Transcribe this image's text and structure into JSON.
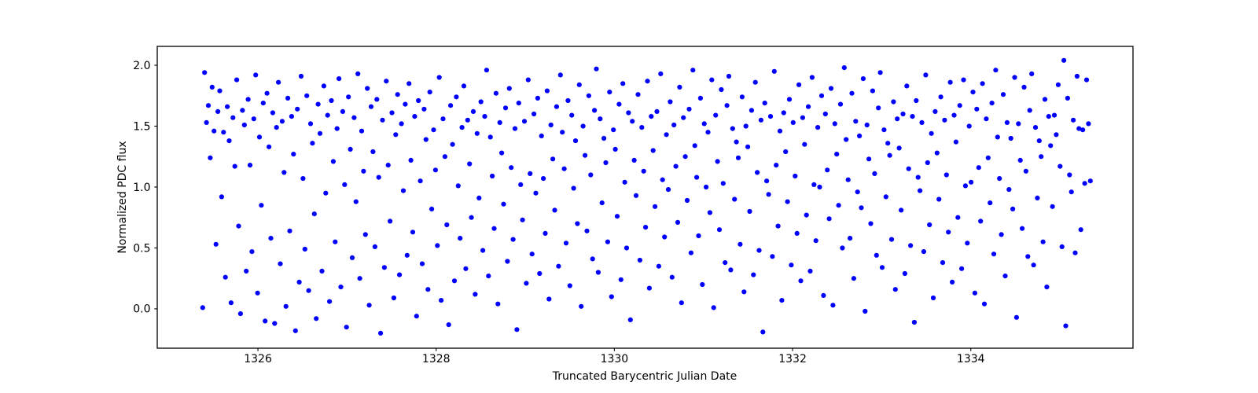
{
  "figure": {
    "background_color": "#ffffff",
    "frame_color": "#000000"
  },
  "chart_data": {
    "type": "scatter",
    "title": "",
    "xlabel": "Truncated Barycentric Julian Date",
    "ylabel": "Normalized PDC flux",
    "x_tick_labels": [
      "1326",
      "1328",
      "1330",
      "1332",
      "1334"
    ],
    "x_tick_values": [
      1326,
      1328,
      1330,
      1332,
      1334
    ],
    "y_tick_labels": [
      "0.0",
      "0.5",
      "1.0",
      "1.5",
      "2.0"
    ],
    "y_tick_values": [
      0.0,
      0.5,
      1.0,
      1.5,
      2.0
    ],
    "xlim": [
      1324.87,
      1335.82
    ],
    "ylim": [
      -0.323,
      2.155
    ],
    "grid": false,
    "legend": "none",
    "marker_color": "#0000ff",
    "marker_radius_px": 3.1,
    "x_start": 1325.38,
    "x_step": 0.02124,
    "y_values": [
      0.01,
      1.94,
      1.53,
      1.67,
      1.24,
      1.82,
      1.46,
      0.53,
      1.62,
      1.79,
      0.92,
      1.45,
      0.26,
      1.66,
      1.38,
      0.05,
      1.57,
      1.17,
      1.88,
      0.68,
      -0.04,
      1.63,
      1.51,
      0.31,
      1.72,
      1.18,
      0.47,
      1.56,
      1.92,
      0.13,
      1.41,
      0.85,
      1.69,
      -0.1,
      1.77,
      1.33,
      0.58,
      1.61,
      -0.12,
      1.49,
      1.86,
      0.37,
      1.54,
      1.12,
      0.02,
      1.73,
      0.64,
      1.58,
      1.27,
      -0.18,
      1.64,
      0.22,
      1.91,
      1.07,
      0.49,
      1.75,
      0.15,
      1.52,
      1.36,
      0.78,
      -0.08,
      1.68,
      1.44,
      0.31,
      1.83,
      0.95,
      1.59,
      0.06,
      1.71,
      1.21,
      0.55,
      1.48,
      1.89,
      0.18,
      1.62,
      1.02,
      -0.15,
      1.74,
      1.31,
      0.42,
      1.57,
      0.88,
      1.93,
      0.25,
      1.46,
      1.13,
      0.61,
      1.81,
      0.03,
      1.66,
      1.29,
      0.51,
      1.72,
      1.08,
      -0.2,
      1.55,
      0.34,
      1.87,
      1.18,
      0.72,
      1.61,
      0.09,
      1.43,
      1.76,
      0.28,
      1.52,
      0.97,
      1.68,
      0.44,
      1.85,
      1.22,
      0.63,
      1.58,
      -0.06,
      1.71,
      1.05,
      0.37,
      1.64,
      1.39,
      0.16,
      1.78,
      0.82,
      1.47,
      1.14,
      0.52,
      1.9,
      0.07,
      1.56,
      1.25,
      0.69,
      -0.13,
      1.67,
      1.35,
      0.23,
      1.74,
      1.01,
      0.58,
      1.49,
      1.83,
      0.33,
      1.55,
      1.19,
      0.75,
      1.62,
      0.12,
      1.44,
      0.91,
      1.7,
      0.48,
      1.58,
      1.96,
      0.27,
      1.41,
      1.09,
      0.66,
      1.77,
      0.04,
      1.53,
      1.28,
      0.86,
      1.65,
      0.39,
      1.81,
      1.16,
      0.57,
      1.48,
      -0.17,
      1.69,
      1.02,
      0.73,
      1.54,
      0.21,
      1.88,
      1.11,
      0.45,
      1.6,
      0.95,
      1.73,
      0.29,
      1.42,
      1.07,
      0.62,
      1.79,
      0.08,
      1.51,
      1.23,
      0.81,
      1.66,
      0.35,
      1.92,
      1.45,
      1.15,
      0.54,
      1.71,
      0.19,
      1.59,
      0.99,
      1.38,
      0.7,
      1.84,
      0.02,
      1.5,
      1.26,
      0.64,
      1.75,
      1.1,
      0.41,
      1.63,
      1.97,
      0.3,
      1.56,
      0.87,
      1.4,
      1.2,
      0.55,
      1.78,
      0.1,
      1.47,
      1.31,
      0.76,
      1.68,
      0.24,
      1.85,
      1.04,
      0.5,
      1.61,
      -0.09,
      1.54,
      1.22,
      0.93,
      1.76,
      0.4,
      1.49,
      1.13,
      0.67,
      1.87,
      0.17,
      1.58,
      1.3,
      0.84,
      1.62,
      0.35,
      1.93,
      1.06,
      0.59,
      1.43,
      0.98,
      1.7,
      0.26,
      1.51,
      1.17,
      0.71,
      1.82,
      0.05,
      1.57,
      1.25,
      0.89,
      1.64,
      0.46,
      1.96,
      1.34,
      1.08,
      0.6,
      1.73,
      0.2,
      1.52,
      1.0,
      1.45,
      0.79,
      1.88,
      0.01,
      1.59,
      1.21,
      0.65,
      1.8,
      1.03,
      0.38,
      1.67,
      1.91,
      0.32,
      1.48,
      0.9,
      1.37,
      1.24,
      0.53,
      1.74,
      0.14,
      1.5,
      1.33,
      0.8,
      1.63,
      0.28,
      1.86,
      1.12,
      0.48,
      1.55,
      -0.19,
      1.69,
      1.05,
      0.94,
      1.58,
      0.43,
      1.95,
      1.18,
      0.68,
      1.46,
      0.07,
      1.61,
      1.29,
      0.88,
      1.72,
      0.36,
      1.53,
      1.09,
      0.62,
      1.84,
      0.23,
      1.57,
      1.35,
      0.77,
      1.66,
      0.31,
      1.9,
      1.02,
      0.56,
      1.49,
      1.0,
      1.75,
      0.11,
      1.6,
      1.14,
      0.74,
      1.81,
      0.03,
      1.52,
      1.27,
      0.85,
      1.68,
      0.5,
      1.98,
      1.39,
      1.06,
      0.58,
      1.77,
      0.25,
      1.54,
      0.96,
      1.42,
      0.83,
      1.89,
      -0.02,
      1.51,
      1.23,
      0.7,
      1.79,
      1.11,
      0.44,
      1.65,
      1.94,
      0.34,
      1.47,
      0.92,
      1.36,
      1.26,
      0.57,
      1.7,
      0.16,
      1.56,
      1.32,
      0.81,
      1.6,
      0.29,
      1.83,
      1.15,
      0.52,
      1.58,
      -0.11,
      1.71,
      1.08,
      0.97,
      1.53,
      0.47,
      1.92,
      1.2,
      0.69,
      1.44,
      0.09,
      1.62,
      1.28,
      0.9,
      1.74,
      0.38,
      1.55,
      1.1,
      0.63,
      1.86,
      0.22,
      1.59,
      1.37,
      0.75,
      1.67,
      0.33,
      1.88,
      1.01,
      0.54,
      1.5,
      1.04,
      1.78,
      0.13,
      1.64,
      1.16,
      0.72,
      1.85,
      0.04,
      1.56,
      1.24,
      0.87,
      1.69,
      0.45,
      1.96,
      1.41,
      1.07,
      0.61,
      1.76,
      0.27,
      1.53,
      0.98,
      1.4,
      0.82,
      1.9,
      -0.07,
      1.52,
      1.22,
      0.66,
      1.82,
      1.13,
      0.43,
      1.63,
      1.93,
      0.36,
      1.49,
      0.91,
      1.38,
      1.25,
      0.55,
      1.72,
      0.18,
      1.58,
      1.34,
      0.84,
      1.59,
      1.43,
      1.84,
      1.17,
      0.51,
      2.04,
      -0.14,
      1.73,
      1.1,
      0.96,
      1.55,
      0.46,
      1.91,
      1.48,
      0.65,
      1.47,
      1.03,
      1.88,
      1.52,
      1.05
    ]
  }
}
